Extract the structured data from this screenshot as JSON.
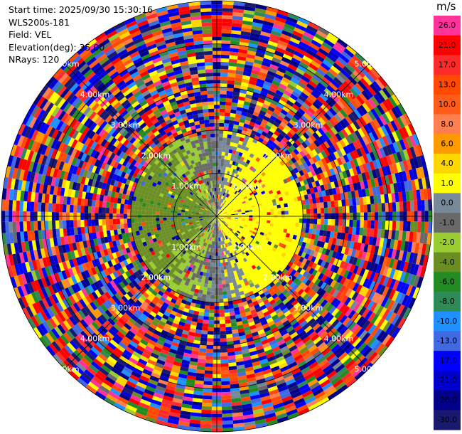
{
  "header": {
    "start_time": "Start time: 2025/09/30 15:30:16",
    "instrument": "WLS200s-181",
    "field": "Field: VEL",
    "elevation": "Elevation(deg): 35.00",
    "nrays": "NRays: 120"
  },
  "colorbar": {
    "unit": "m/s",
    "levels": [
      {
        "label": "26.0",
        "color": "#ff3399"
      },
      {
        "label": "21.0",
        "color": "#ff0000"
      },
      {
        "label": "17.0",
        "color": "#ff2a2a"
      },
      {
        "label": "13.0",
        "color": "#ff4a00"
      },
      {
        "label": "10.0",
        "color": "#ff5c1a"
      },
      {
        "label": "8.0",
        "color": "#ff7f50"
      },
      {
        "label": "6.0",
        "color": "#ff9900"
      },
      {
        "label": "4.0",
        "color": "#ffd700"
      },
      {
        "label": "1.0",
        "color": "#ffff00"
      },
      {
        "label": "0.0",
        "color": "#778899"
      },
      {
        "label": "-1.0",
        "color": "#696969"
      },
      {
        "label": "-2.0",
        "color": "#9acd32"
      },
      {
        "label": "-4.0",
        "color": "#6b8e23"
      },
      {
        "label": "-6.0",
        "color": "#228b22"
      },
      {
        "label": "-8.0",
        "color": "#2e8b57"
      },
      {
        "label": "-10.0",
        "color": "#1e90ff"
      },
      {
        "label": "-13.0",
        "color": "#4169e1"
      },
      {
        "label": "-17.0",
        "color": "#0000ff"
      },
      {
        "label": "-21.0",
        "color": "#0000cd"
      },
      {
        "label": "-26.0",
        "color": "#00008b"
      },
      {
        "label": "-30.0",
        "color": "#191970"
      }
    ]
  },
  "chart_data": {
    "type": "heatmap",
    "plot": "PPI polar (velocity)",
    "field": "VEL",
    "units": "m/s",
    "nrays": 120,
    "elevation_deg": 35.0,
    "range_rings_km": [
      1.0,
      2.0,
      3.0,
      4.0,
      5.0
    ],
    "ring_labels": [
      "1.00km",
      "2.00km",
      "3.00km",
      "4.00km",
      "5.00km"
    ],
    "max_range_km": 5.0,
    "spokes_every_deg": 45,
    "velocity_pattern": {
      "valid_range_km": [
        0,
        2.0
      ],
      "positive_side": "east",
      "negative_side": "west",
      "max_abs_velocity_ms": 4.0,
      "beyond_valid_range": "noise (random colours across full scale)"
    }
  }
}
